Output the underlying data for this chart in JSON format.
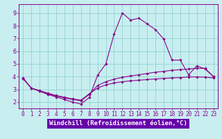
{
  "background_color": "#c8eef0",
  "plot_bg_color": "#c8eef0",
  "line_color": "#880088",
  "grid_color": "#88cccc",
  "xlabel": "Windchill (Refroidissement éolien,°C)",
  "xlabel_fontsize": 6.5,
  "tick_fontsize": 6,
  "xlim": [
    -0.5,
    23.5
  ],
  "ylim": [
    1.5,
    9.7
  ],
  "yticks": [
    2,
    3,
    4,
    5,
    6,
    7,
    8,
    9
  ],
  "xticks": [
    0,
    1,
    2,
    3,
    4,
    5,
    6,
    7,
    8,
    9,
    10,
    11,
    12,
    13,
    14,
    15,
    16,
    17,
    18,
    19,
    20,
    21,
    22,
    23
  ],
  "spine_color": "#880088",
  "xlabel_bg": "#6600aa",
  "xlabel_text_color": "#ffffff",
  "line1_x": [
    0,
    1,
    2,
    3,
    4,
    5,
    6,
    7,
    8,
    9,
    10,
    11,
    12,
    13,
    14,
    15,
    16,
    17,
    18,
    19,
    20,
    21,
    22,
    23
  ],
  "line1_y": [
    3.9,
    3.1,
    2.85,
    2.6,
    2.4,
    2.2,
    2.0,
    1.85,
    2.35,
    4.1,
    5.0,
    7.35,
    9.0,
    8.45,
    8.6,
    8.15,
    7.7,
    6.95,
    5.3,
    5.3,
    4.15,
    4.85,
    4.6,
    4.0
  ],
  "line2_x": [
    0,
    1,
    2,
    3,
    4,
    5,
    6,
    7,
    8,
    9,
    10,
    11,
    12,
    13,
    14,
    15,
    16,
    17,
    18,
    19,
    20,
    21,
    22,
    23
  ],
  "line2_y": [
    3.85,
    3.1,
    2.88,
    2.65,
    2.48,
    2.33,
    2.2,
    2.1,
    2.6,
    3.3,
    3.6,
    3.8,
    3.95,
    4.05,
    4.15,
    4.25,
    4.35,
    4.42,
    4.5,
    4.55,
    4.6,
    4.65,
    4.65,
    4.0
  ],
  "line3_x": [
    0,
    1,
    2,
    3,
    4,
    5,
    6,
    7,
    8,
    9,
    10,
    11,
    12,
    13,
    14,
    15,
    16,
    17,
    18,
    19,
    20,
    21,
    22,
    23
  ],
  "line3_y": [
    3.85,
    3.1,
    2.9,
    2.7,
    2.52,
    2.38,
    2.25,
    2.15,
    2.65,
    3.1,
    3.35,
    3.5,
    3.6,
    3.67,
    3.72,
    3.77,
    3.82,
    3.86,
    3.9,
    3.93,
    3.97,
    3.98,
    3.96,
    3.9
  ]
}
